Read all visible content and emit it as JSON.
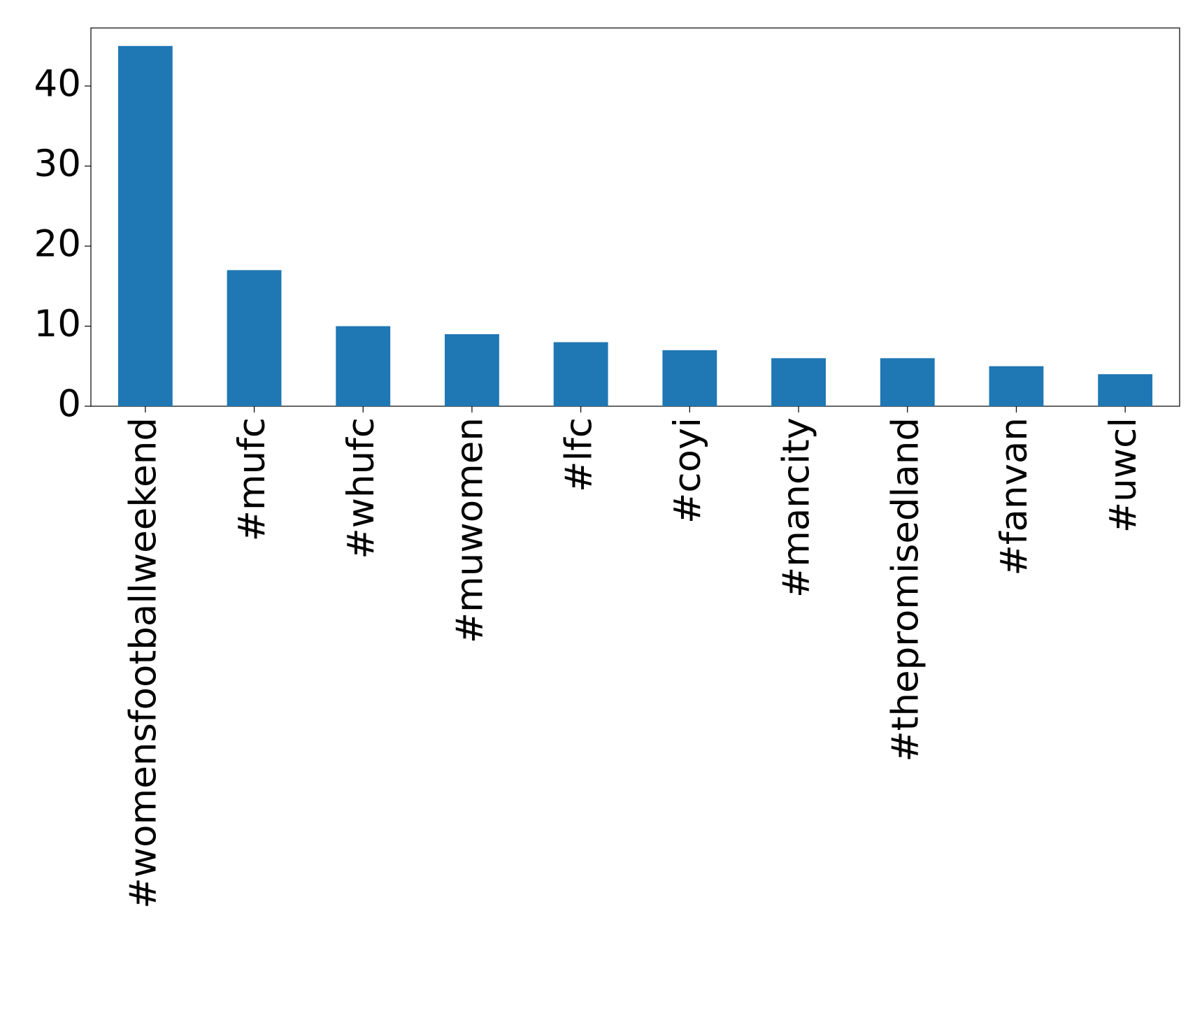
{
  "chart_data": {
    "type": "bar",
    "categories": [
      "#womensfootballweekend",
      "#mufc",
      "#whufc",
      "#muwomen",
      "#lfc",
      "#coyi",
      "#mancity",
      "#thepromisedland",
      "#fanvan",
      "#uwcl"
    ],
    "values": [
      45,
      17,
      10,
      9,
      8,
      7,
      6,
      6,
      5,
      4
    ],
    "color": "#1f77b4",
    "ylim": [
      0,
      47.25
    ],
    "yticks": [
      0,
      10,
      20,
      30,
      40
    ],
    "grid": false
  }
}
